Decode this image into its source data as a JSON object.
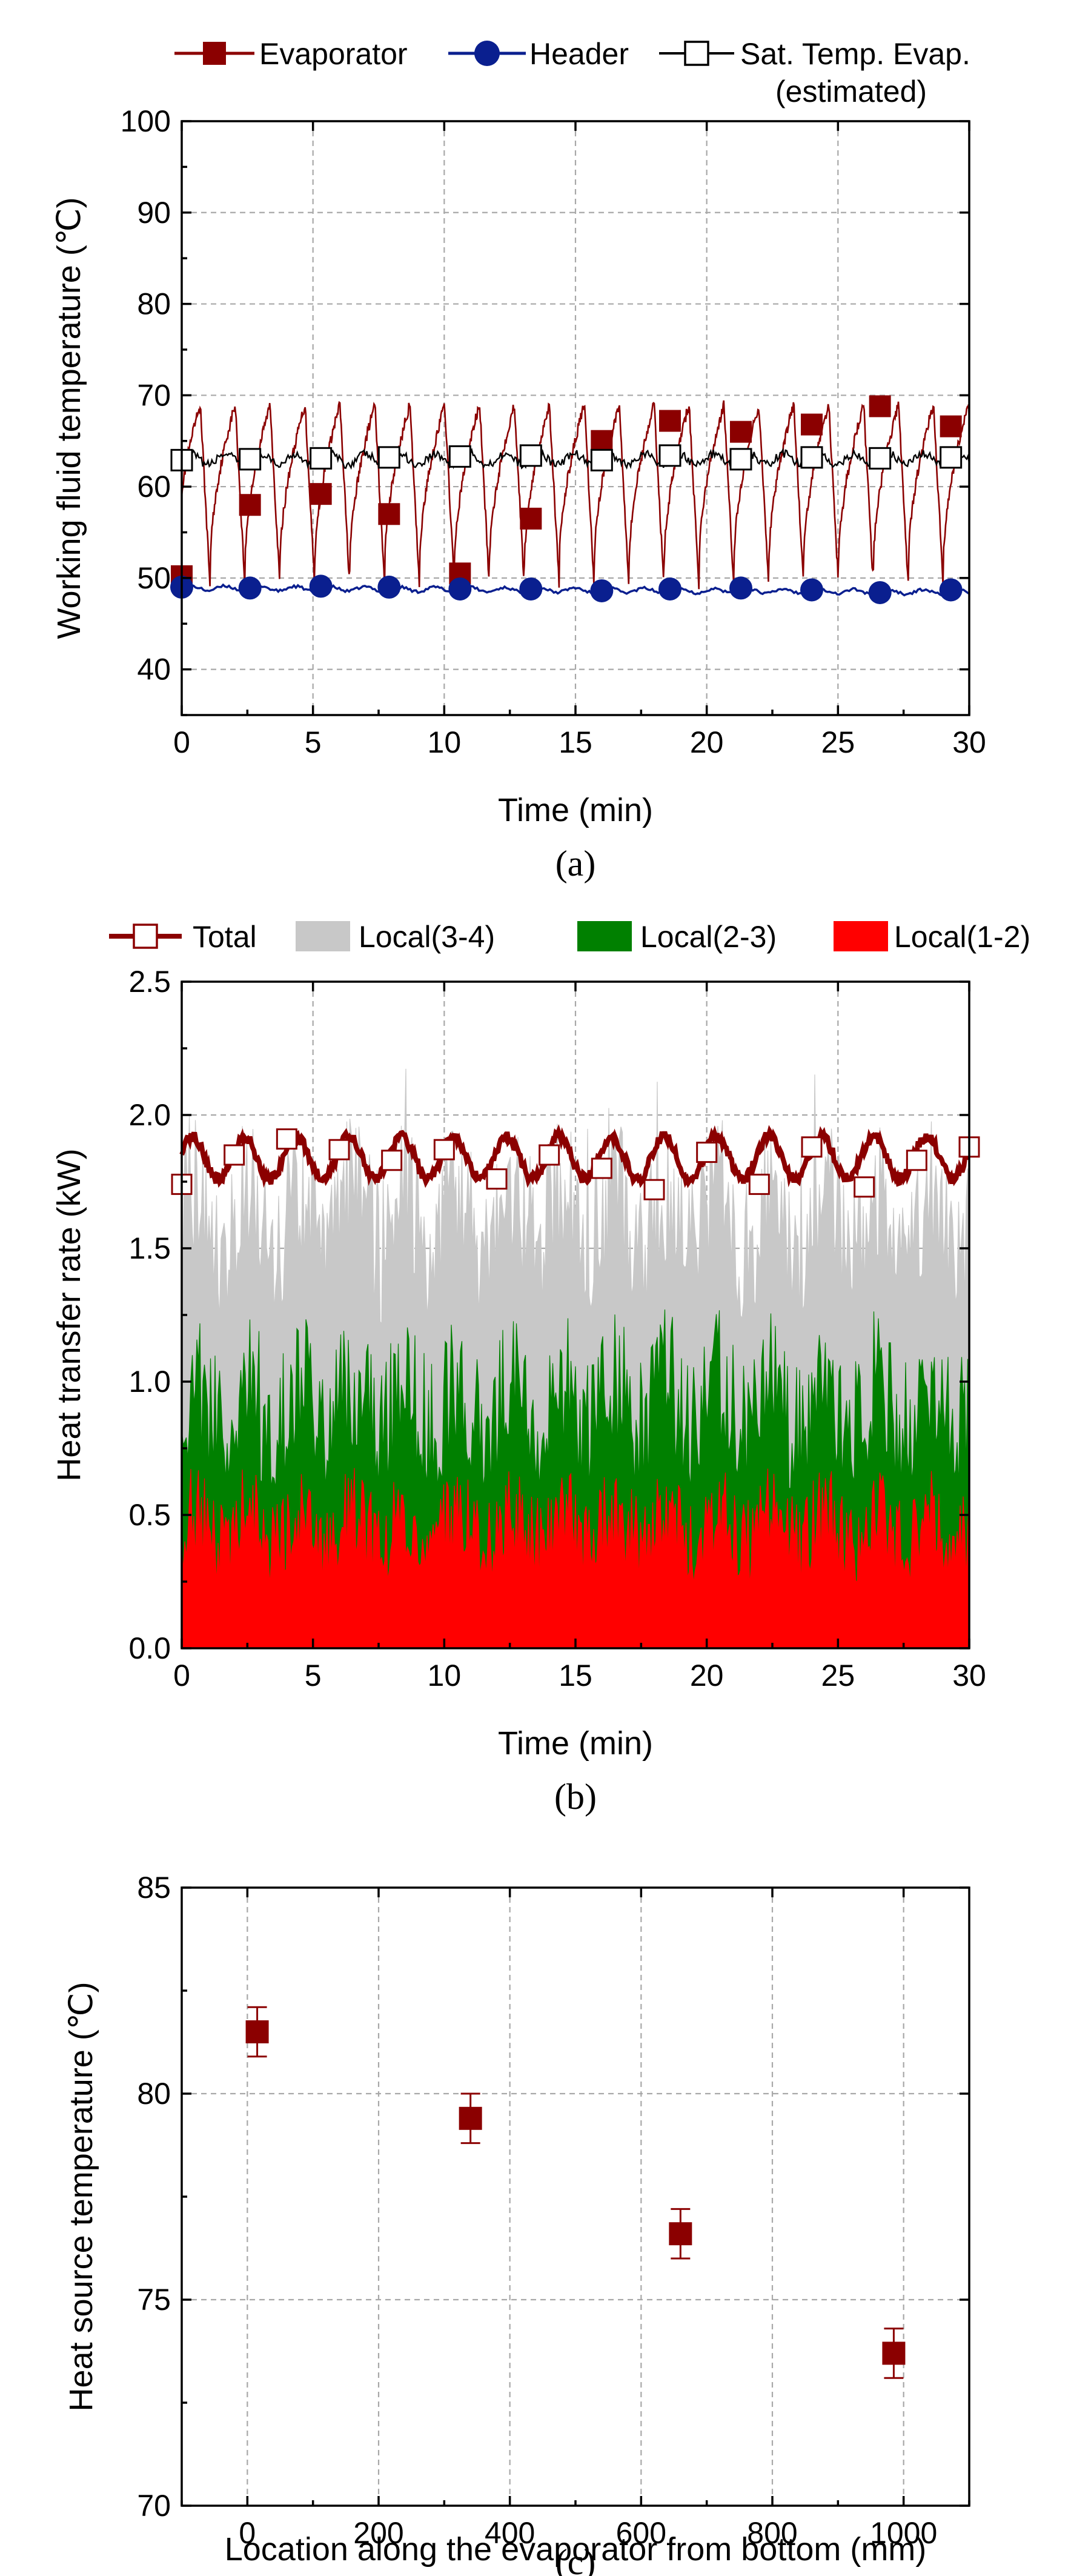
{
  "chart_data": [
    {
      "id": "a",
      "type": "line",
      "caption": "(a)",
      "xlabel": "Time (min)",
      "ylabel": "Working fluid temperature (℃)",
      "xlim": [
        0,
        30
      ],
      "ylim": [
        35,
        100
      ],
      "xticks": [
        0,
        5,
        10,
        15,
        20,
        25,
        30
      ],
      "yticks": [
        40,
        50,
        60,
        70,
        80,
        90,
        100
      ],
      "grid": true,
      "legend_position": "top",
      "series": [
        {
          "name": "Evaporator",
          "color": "#8b0000",
          "marker": "filled-square",
          "description": "sawtooth oscillation between about 49 and 69 with period of about 1.3 min",
          "period_min": 1.33,
          "min": 49,
          "max": 69,
          "markers": {
            "x": [
              0,
              2.6,
              5.3,
              7.9,
              10.6,
              13.3,
              16,
              18.6,
              21.3,
              24,
              26.6,
              29.3
            ],
            "y": [
              50.2,
              58,
              59.2,
              57,
              50.5,
              56.5,
              65,
              67.2,
              66,
              66.8,
              68.8,
              66.6
            ]
          }
        },
        {
          "name": "Header",
          "color": "#0a1f8f",
          "marker": "filled-circle",
          "markers": {
            "x": [
              0,
              2.6,
              5.3,
              7.9,
              10.6,
              13.3,
              16,
              18.6,
              21.3,
              24,
              26.6,
              29.3
            ],
            "y": [
              49,
              48.9,
              49.1,
              49,
              48.8,
              48.8,
              48.6,
              48.8,
              48.9,
              48.7,
              48.4,
              48.7
            ]
          }
        },
        {
          "name": "Sat. Temp. Evap.",
          "name_line2": "(estimated)",
          "color": "#000000",
          "marker": "open-square",
          "markers": {
            "x": [
              0,
              2.6,
              5.3,
              7.9,
              10.6,
              13.3,
              16,
              18.6,
              21.3,
              24,
              26.6,
              29.3
            ],
            "y": [
              62.9,
              63,
              63.1,
              63.2,
              63.3,
              63.4,
              62.9,
              63.4,
              63,
              63.2,
              63.1,
              63.2
            ]
          }
        }
      ]
    },
    {
      "id": "b",
      "type": "area",
      "caption": "(b)",
      "xlabel": "Time (min)",
      "ylabel": "Heat transfer rate (kW)",
      "xlim": [
        0,
        30
      ],
      "ylim": [
        0,
        2.5
      ],
      "xticks": [
        0,
        5,
        10,
        15,
        20,
        25,
        30
      ],
      "yticks": [
        0.0,
        0.5,
        1.0,
        1.5,
        2.0,
        2.5
      ],
      "ytick_labels": [
        "0.0",
        "0.5",
        "1.0",
        "1.5",
        "2.0",
        "2.5"
      ],
      "grid": true,
      "legend_position": "top",
      "series": [
        {
          "name": "Total",
          "color": "#8b0000",
          "marker": "open-square",
          "description": "oscillates between about 1.75 and 1.95 kW",
          "markers": {
            "x": [
              0,
              2,
              4,
              6,
              8,
              10,
              12,
              14,
              16,
              18,
              20,
              22,
              24,
              26,
              28,
              30
            ],
            "y": [
              1.74,
              1.85,
              1.91,
              1.87,
              1.83,
              1.87,
              1.76,
              1.85,
              1.8,
              1.72,
              1.86,
              1.74,
              1.88,
              1.73,
              1.83,
              1.88
            ]
          }
        },
        {
          "name": "Local(3-4)",
          "color": "#c8c8c8",
          "typical_top": 1.6,
          "range": [
            1.2,
            2.25
          ]
        },
        {
          "name": "Local(2-3)",
          "color": "#008000",
          "typical_top": 0.9,
          "range": [
            0.6,
            1.35
          ]
        },
        {
          "name": "Local(1-2)",
          "color": "#ff0000",
          "typical_top": 0.45,
          "range": [
            0.15,
            0.68
          ]
        }
      ]
    },
    {
      "id": "c",
      "type": "scatter",
      "caption": "(c)",
      "xlabel": "Location along the evaporator from bottom (mm)",
      "ylabel": "Heat source temperature (℃)",
      "xlim": [
        -100,
        1100
      ],
      "ylim": [
        70,
        85
      ],
      "xticks": [
        0,
        200,
        400,
        600,
        800,
        1000
      ],
      "yticks": [
        70,
        75,
        80,
        85
      ],
      "grid": true,
      "series": [
        {
          "name": "Heat source temperature",
          "color": "#8b0000",
          "marker": "filled-square",
          "x": [
            15,
            340,
            660,
            985
          ],
          "y": [
            81.5,
            79.4,
            76.6,
            73.7
          ],
          "error": [
            0.6,
            0.6,
            0.6,
            0.6
          ]
        }
      ]
    }
  ]
}
